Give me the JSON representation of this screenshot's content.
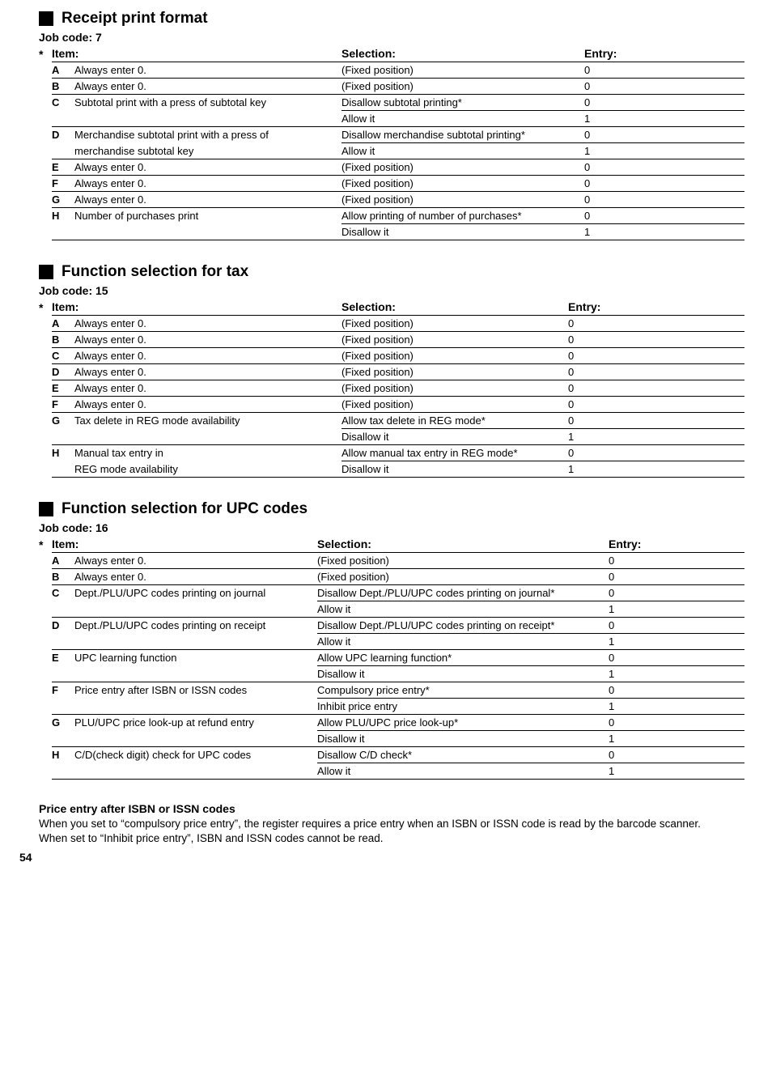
{
  "pageNumber": "54",
  "sections": [
    {
      "id": "s7",
      "heading": "Receipt print format",
      "jobCode": "Job code:  7",
      "tableClass": "t7",
      "headers": {
        "item": "Item:",
        "selection": "Selection:",
        "entry": "Entry:"
      },
      "rows": [
        {
          "letter": "A",
          "item": "Always enter 0.",
          "selection": "(Fixed position)",
          "entry": "0",
          "group": "A",
          "last": true
        },
        {
          "letter": "B",
          "item": "Always enter 0.",
          "selection": "(Fixed position)",
          "entry": "0",
          "group": "B",
          "last": true
        },
        {
          "letter": "C",
          "item": "Subtotal print with a press of subtotal key",
          "selection": "Disallow subtotal printing*",
          "entry": "0",
          "group": "C",
          "last": false
        },
        {
          "letter": "",
          "item": "",
          "selection": "Allow it",
          "entry": "1",
          "group": "C",
          "last": true
        },
        {
          "letter": "D",
          "item": "Merchandise subtotal print with a press of",
          "selection": "Disallow merchandise subtotal printing*",
          "entry": "0",
          "group": "D",
          "last": false
        },
        {
          "letter": "",
          "item": "merchandise subtotal key",
          "selection": "Allow it",
          "entry": "1",
          "group": "D",
          "last": true
        },
        {
          "letter": "E",
          "item": "Always enter 0.",
          "selection": "(Fixed position)",
          "entry": "0",
          "group": "E",
          "last": true
        },
        {
          "letter": "F",
          "item": "Always enter 0.",
          "selection": "(Fixed position)",
          "entry": "0",
          "group": "F",
          "last": true
        },
        {
          "letter": "G",
          "item": "Always enter 0.",
          "selection": "(Fixed position)",
          "entry": "0",
          "group": "G",
          "last": true
        },
        {
          "letter": "H",
          "item": "Number of purchases print",
          "selection": "Allow printing of number of purchases*",
          "entry": "0",
          "group": "H",
          "last": false
        },
        {
          "letter": "",
          "item": "",
          "selection": "Disallow it",
          "entry": "1",
          "group": "H",
          "last": true
        }
      ]
    },
    {
      "id": "s15",
      "heading": "Function selection for tax",
      "jobCode": "Job code:  15",
      "tableClass": "t15",
      "headers": {
        "item": "Item:",
        "selection": "Selection:",
        "entry": "Entry:"
      },
      "rows": [
        {
          "letter": "A",
          "item": "Always enter 0.",
          "selection": "(Fixed position)",
          "entry": "0",
          "group": "A",
          "last": true
        },
        {
          "letter": "B",
          "item": "Always enter 0.",
          "selection": "(Fixed position)",
          "entry": "0",
          "group": "B",
          "last": true
        },
        {
          "letter": "C",
          "item": "Always enter 0.",
          "selection": "(Fixed position)",
          "entry": "0",
          "group": "C",
          "last": true
        },
        {
          "letter": "D",
          "item": "Always enter 0.",
          "selection": "(Fixed position)",
          "entry": "0",
          "group": "D",
          "last": true
        },
        {
          "letter": "E",
          "item": "Always enter 0.",
          "selection": "(Fixed position)",
          "entry": "0",
          "group": "E",
          "last": true
        },
        {
          "letter": "F",
          "item": "Always enter 0.",
          "selection": "(Fixed position)",
          "entry": "0",
          "group": "F",
          "last": true
        },
        {
          "letter": "G",
          "item": "Tax delete in REG mode availability",
          "selection": "Allow tax delete in REG mode*",
          "entry": "0",
          "group": "G",
          "last": false
        },
        {
          "letter": "",
          "item": "",
          "selection": "Disallow it",
          "entry": "1",
          "group": "G",
          "last": true
        },
        {
          "letter": "H",
          "item": "Manual tax entry in",
          "selection": "Allow manual tax entry in REG mode*",
          "entry": "0",
          "group": "H",
          "last": false
        },
        {
          "letter": "",
          "item": "REG mode availability",
          "selection": "Disallow it",
          "entry": "1",
          "group": "H",
          "last": true
        }
      ]
    },
    {
      "id": "s16",
      "heading": "Function selection for UPC codes",
      "jobCode": "Job code:  16",
      "tableClass": "t16",
      "headers": {
        "item": "Item:",
        "selection": "Selection:",
        "entry": "Entry:"
      },
      "rows": [
        {
          "letter": "A",
          "item": "Always enter 0.",
          "selection": "(Fixed position)",
          "entry": "0",
          "group": "A",
          "last": true
        },
        {
          "letter": "B",
          "item": "Always enter 0.",
          "selection": "(Fixed position)",
          "entry": "0",
          "group": "B",
          "last": true
        },
        {
          "letter": "C",
          "item": "Dept./PLU/UPC codes printing on journal",
          "selection": "Disallow Dept./PLU/UPC codes printing on journal*",
          "entry": "0",
          "group": "C",
          "last": false
        },
        {
          "letter": "",
          "item": "",
          "selection": "Allow it",
          "entry": "1",
          "group": "C",
          "last": true
        },
        {
          "letter": "D",
          "item": "Dept./PLU/UPC codes printing on receipt",
          "selection": "Disallow Dept./PLU/UPC codes printing on receipt*",
          "entry": "0",
          "group": "D",
          "last": false
        },
        {
          "letter": "",
          "item": "",
          "selection": "Allow it",
          "entry": "1",
          "group": "D",
          "last": true
        },
        {
          "letter": "E",
          "item": "UPC learning function",
          "selection": "Allow UPC learning function*",
          "entry": "0",
          "group": "E",
          "last": false
        },
        {
          "letter": "",
          "item": "",
          "selection": "Disallow it",
          "entry": "1",
          "group": "E",
          "last": true
        },
        {
          "letter": "F",
          "item": "Price entry after ISBN or ISSN codes",
          "selection": "Compulsory price entry*",
          "entry": "0",
          "group": "F",
          "last": false
        },
        {
          "letter": "",
          "item": "",
          "selection": "Inhibit price entry",
          "entry": "1",
          "group": "F",
          "last": true
        },
        {
          "letter": "G",
          "item": "PLU/UPC price look-up at refund entry",
          "selection": "Allow PLU/UPC price look-up*",
          "entry": "0",
          "group": "G",
          "last": false
        },
        {
          "letter": "",
          "item": "",
          "selection": "Disallow it",
          "entry": "1",
          "group": "G",
          "last": true
        },
        {
          "letter": "H",
          "item": "C/D(check digit) check for UPC codes",
          "selection": "Disallow C/D check*",
          "entry": "0",
          "group": "H",
          "last": false
        },
        {
          "letter": "",
          "item": "",
          "selection": "Allow it",
          "entry": "1",
          "group": "H",
          "last": true
        }
      ]
    }
  ],
  "note": {
    "heading": "Price entry after ISBN or ISSN codes",
    "line1": "When you set to “compulsory price entry”, the register requires a price entry when an ISBN or ISSN code is read by the barcode scanner.",
    "line2": "When set to “Inhibit price entry”, ISBN and ISSN codes cannot be read."
  }
}
